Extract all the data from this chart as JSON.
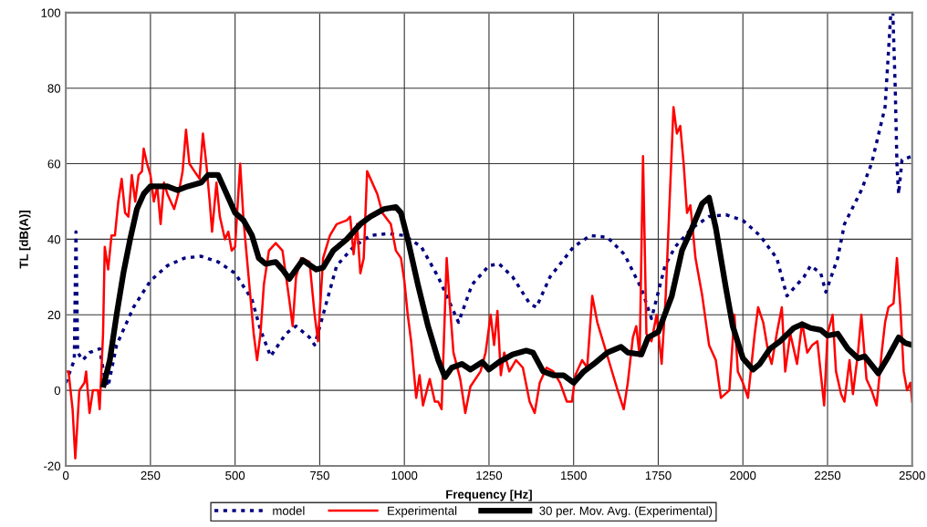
{
  "chart_data": {
    "type": "line",
    "xlabel": "Frequency [Hz]",
    "ylabel": "TL [dB(A)]",
    "xlim": [
      0,
      2500
    ],
    "ylim": [
      -20,
      100
    ],
    "xticks": [
      0,
      250,
      500,
      750,
      1000,
      1250,
      1500,
      1750,
      2000,
      2250,
      2500
    ],
    "yticks": [
      -20,
      0,
      20,
      40,
      60,
      80,
      100
    ],
    "grid": true,
    "legend": "bottom",
    "marker": "none",
    "series": [
      {
        "name": "model",
        "color": "#000080",
        "line_style": "dotted",
        "x": [
          0,
          25,
          30,
          35,
          50,
          70,
          100,
          115,
          125,
          150,
          200,
          250,
          300,
          350,
          400,
          450,
          500,
          550,
          575,
          605,
          650,
          680,
          720,
          735,
          760,
          800,
          850,
          900,
          950,
          1000,
          1050,
          1100,
          1160,
          1200,
          1250,
          1280,
          1320,
          1370,
          1390,
          1430,
          1500,
          1550,
          1600,
          1650,
          1700,
          1730,
          1770,
          1800,
          1850,
          1900,
          1950,
          2000,
          2050,
          2100,
          2130,
          2180,
          2200,
          2230,
          2245,
          2280,
          2300,
          2350,
          2380,
          2420,
          2437,
          2443,
          2450,
          2455,
          2460,
          2470,
          2500
        ],
        "values": [
          2,
          8,
          42,
          10,
          8,
          10,
          11,
          3,
          1,
          12,
          22,
          29,
          33,
          35,
          35.5,
          34,
          31,
          24,
          16,
          9,
          15,
          17,
          14,
          12,
          20,
          33,
          38,
          41,
          41.5,
          41,
          38,
          30,
          18,
          28,
          33,
          33.5,
          30,
          23,
          22,
          30,
          38,
          41,
          40.5,
          36,
          27,
          19,
          33,
          38,
          43,
          46,
          46.5,
          45,
          41,
          35,
          25,
          30,
          33,
          31,
          26,
          35,
          44,
          53,
          60,
          75,
          100,
          100,
          80,
          60,
          52,
          61,
          62
        ]
      },
      {
        "name": "Experimental",
        "color": "#ff0000",
        "line_style": "solid",
        "x": [
          0,
          8,
          20,
          28,
          40,
          55,
          60,
          70,
          80,
          95,
          100,
          110,
          115,
          125,
          135,
          145,
          155,
          165,
          175,
          185,
          195,
          205,
          215,
          225,
          230,
          240,
          250,
          260,
          270,
          280,
          290,
          300,
          320,
          335,
          345,
          355,
          365,
          380,
          395,
          405,
          415,
          425,
          432,
          445,
          455,
          470,
          480,
          490,
          500,
          515,
          525,
          535,
          545,
          555,
          565,
          575,
          585,
          600,
          620,
          640,
          660,
          670,
          680,
          695,
          720,
          735,
          745,
          760,
          780,
          800,
          830,
          840,
          850,
          860,
          870,
          880,
          890,
          900,
          920,
          935,
          960,
          975,
          990,
          1000,
          1010,
          1020,
          1035,
          1045,
          1055,
          1075,
          1090,
          1100,
          1110,
          1125,
          1135,
          1145,
          1165,
          1180,
          1195,
          1225,
          1240,
          1255,
          1265,
          1275,
          1285,
          1295,
          1310,
          1330,
          1350,
          1370,
          1385,
          1400,
          1420,
          1440,
          1460,
          1480,
          1495,
          1505,
          1525,
          1540,
          1555,
          1570,
          1590,
          1610,
          1630,
          1648,
          1660,
          1675,
          1685,
          1695,
          1705,
          1715,
          1730,
          1745,
          1760,
          1772,
          1795,
          1805,
          1815,
          1825,
          1835,
          1845,
          1860,
          1880,
          1900,
          1920,
          1935,
          1960,
          1975,
          1985,
          2000,
          2015,
          2035,
          2045,
          2060,
          2075,
          2085,
          2100,
          2115,
          2125,
          2140,
          2160,
          2175,
          2190,
          2205,
          2220,
          2240,
          2250,
          2265,
          2275,
          2290,
          2300,
          2315,
          2325,
          2340,
          2350,
          2365,
          2380,
          2395,
          2410,
          2420,
          2430,
          2445,
          2455,
          2465,
          2475,
          2485,
          2495,
          2500
        ],
        "values": [
          5,
          5,
          -5,
          -18,
          0,
          2,
          5,
          -6,
          0,
          0,
          -5,
          15,
          38,
          32,
          41,
          41,
          50,
          56,
          47,
          46,
          57,
          50,
          57,
          58,
          64,
          60,
          57,
          50,
          54,
          44,
          55,
          52,
          48,
          53,
          58,
          69,
          60,
          58,
          56,
          68,
          60,
          50,
          42,
          55,
          46,
          40,
          42,
          37,
          38,
          60,
          45,
          35,
          25,
          15,
          8,
          15,
          28,
          37,
          39,
          37,
          24,
          17,
          30,
          35,
          34,
          20,
          13,
          35,
          41,
          44,
          45,
          46,
          36,
          44,
          31,
          35,
          58,
          56,
          52,
          47,
          44,
          37,
          35,
          29,
          20,
          13,
          -2,
          4,
          -4,
          3,
          -3,
          -3,
          -5,
          35,
          22,
          10,
          3,
          -6,
          1,
          5,
          10,
          20,
          12,
          21,
          4,
          10,
          5,
          8,
          6,
          -3,
          -6,
          2,
          6,
          5,
          2,
          -3,
          -3,
          4,
          8,
          6,
          25,
          18,
          12,
          6,
          0,
          -5,
          2,
          14,
          17,
          9,
          62,
          15,
          13,
          20,
          7,
          25,
          75,
          68,
          70,
          60,
          47,
          49,
          35,
          25,
          12,
          8,
          -2,
          0,
          20,
          5,
          2,
          -2,
          15,
          22,
          18,
          10,
          7,
          15,
          22,
          5,
          15,
          7,
          18,
          10,
          12,
          13,
          -4,
          15,
          20,
          5,
          -1,
          -3,
          8,
          -1,
          10,
          20,
          3,
          0,
          -4,
          10,
          18,
          22,
          23,
          35,
          22,
          5,
          0,
          2,
          -3
        ]
      },
      {
        "name": "30 per. Mov. Avg. (Experimental)",
        "color": "#000000",
        "line_style": "solid",
        "x": [
          112,
          130,
          150,
          170,
          190,
          210,
          230,
          250,
          270,
          300,
          330,
          360,
          400,
          420,
          450,
          470,
          500,
          525,
          550,
          570,
          590,
          620,
          640,
          660,
          680,
          700,
          715,
          740,
          760,
          790,
          830,
          870,
          900,
          940,
          975,
          990,
          1010,
          1040,
          1070,
          1100,
          1120,
          1140,
          1170,
          1195,
          1230,
          1250,
          1280,
          1320,
          1360,
          1380,
          1410,
          1440,
          1470,
          1500,
          1530,
          1560,
          1600,
          1640,
          1660,
          1700,
          1720,
          1750,
          1790,
          1820,
          1850,
          1880,
          1900,
          1920,
          1950,
          1970,
          2000,
          2030,
          2050,
          2080,
          2110,
          2150,
          2175,
          2200,
          2230,
          2250,
          2280,
          2310,
          2340,
          2360,
          2400,
          2430,
          2460,
          2480,
          2500
        ],
        "values": [
          1.5,
          8,
          20,
          31,
          40,
          48,
          52,
          54,
          54,
          54,
          53,
          54,
          55,
          57,
          57,
          53,
          47,
          45,
          41,
          35,
          33.5,
          34,
          32,
          29.5,
          32,
          34.5,
          33.5,
          32,
          32.5,
          37,
          40,
          44,
          46,
          48,
          48.5,
          47,
          40,
          28,
          17,
          8,
          3.5,
          6,
          7,
          5.5,
          7.5,
          5.5,
          7.5,
          9.5,
          10.5,
          10,
          5,
          4,
          4,
          2,
          5,
          7,
          10,
          11.5,
          10,
          9.5,
          14,
          15.5,
          25,
          37,
          43,
          49.5,
          51,
          43,
          27,
          17,
          8.5,
          5.5,
          7,
          11,
          13,
          16.5,
          17.5,
          16.5,
          16,
          14.5,
          15,
          11,
          8.5,
          9,
          4.5,
          9,
          14,
          12.5,
          12
        ]
      }
    ]
  }
}
